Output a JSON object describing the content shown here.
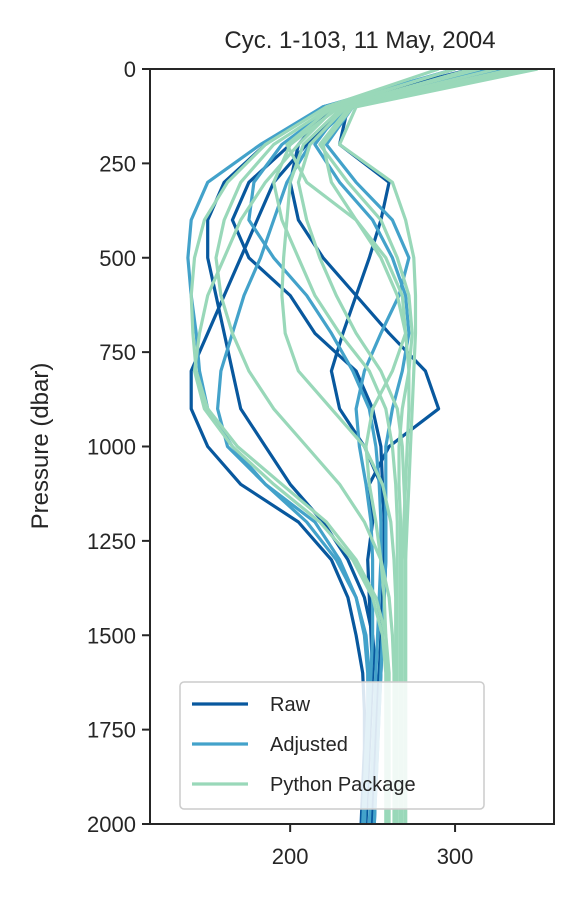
{
  "chart_data": {
    "type": "line",
    "title": "Cyc. 1-103, 11 May, 2004",
    "xlabel": "",
    "ylabel": "Pressure (dbar)",
    "xlim": [
      115,
      360
    ],
    "ylim": [
      0,
      2000
    ],
    "y_inverted": true,
    "x_ticks": [
      200,
      300
    ],
    "y_ticks": [
      0,
      250,
      500,
      750,
      1000,
      1250,
      1500,
      1750,
      2000
    ],
    "grid": false,
    "legend_position": "lower-left",
    "pressure_levels": [
      0,
      100,
      200,
      300,
      400,
      500,
      600,
      700,
      800,
      900,
      1000,
      1100,
      1200,
      1300,
      1400,
      1500,
      1600,
      1700,
      1800,
      1900,
      2000
    ],
    "series": [
      {
        "name": "Raw",
        "color": "#08589e",
        "profiles": [
          [
            300,
            225,
            205,
            200,
            205,
            220,
            240,
            260,
            282,
            290,
            260,
            248,
            250,
            247,
            248,
            249,
            250,
            249,
            248,
            247,
            246
          ],
          [
            335,
            232,
            210,
            190,
            180,
            170,
            160,
            150,
            140,
            140,
            150,
            170,
            205,
            225,
            235,
            240,
            244,
            245,
            245,
            244,
            243
          ],
          [
            340,
            235,
            230,
            260,
            255,
            248,
            240,
            232,
            225,
            230,
            245,
            255,
            258,
            258,
            257,
            256,
            255,
            254,
            253,
            252,
            251
          ],
          [
            320,
            228,
            200,
            175,
            165,
            175,
            200,
            215,
            240,
            250,
            255,
            256,
            257,
            257,
            256,
            255,
            254,
            253,
            252,
            251,
            250
          ],
          [
            310,
            220,
            185,
            160,
            150,
            150,
            155,
            160,
            165,
            170,
            185,
            200,
            220,
            235,
            245,
            250,
            252,
            252,
            251,
            250,
            249
          ]
        ]
      },
      {
        "name": "Adjusted",
        "color": "#43a2ca",
        "profiles": [
          [
            318,
            232,
            215,
            230,
            250,
            262,
            270,
            272,
            268,
            262,
            258,
            258,
            258,
            258,
            257,
            256,
            255,
            254,
            253,
            252,
            251
          ],
          [
            345,
            236,
            212,
            198,
            190,
            182,
            172,
            165,
            158,
            156,
            162,
            185,
            215,
            230,
            240,
            245,
            247,
            247,
            246,
            245,
            244
          ],
          [
            330,
            226,
            195,
            178,
            175,
            190,
            210,
            225,
            238,
            248,
            252,
            254,
            255,
            255,
            254,
            253,
            252,
            251,
            250,
            249,
            248
          ],
          [
            300,
            220,
            182,
            150,
            140,
            138,
            140,
            143,
            145,
            150,
            165,
            185,
            210,
            228,
            240,
            246,
            248,
            248,
            247,
            246,
            245
          ],
          [
            342,
            238,
            222,
            240,
            262,
            272,
            266,
            255,
            245,
            240,
            242,
            246,
            249,
            250,
            250,
            250,
            249,
            248,
            247,
            246,
            245
          ]
        ]
      },
      {
        "name": "Python Package",
        "color": "#99d8b9",
        "profiles": [
          [
            350,
            240,
            230,
            262,
            270,
            275,
            276,
            276,
            275,
            274,
            273,
            272,
            271,
            270,
            270,
            270,
            270,
            270,
            270,
            270,
            270
          ],
          [
            345,
            238,
            220,
            225,
            240,
            255,
            265,
            270,
            272,
            272,
            271,
            270,
            269,
            268,
            268,
            268,
            268,
            268,
            268,
            268,
            268
          ],
          [
            310,
            230,
            200,
            190,
            195,
            205,
            215,
            230,
            248,
            258,
            262,
            264,
            265,
            265,
            265,
            265,
            265,
            265,
            265,
            265,
            265
          ],
          [
            300,
            225,
            190,
            170,
            160,
            155,
            158,
            165,
            175,
            190,
            210,
            230,
            245,
            255,
            260,
            262,
            263,
            263,
            263,
            263,
            263
          ],
          [
            290,
            222,
            185,
            162,
            148,
            142,
            140,
            141,
            143,
            150,
            168,
            195,
            222,
            240,
            252,
            258,
            260,
            260,
            260,
            260,
            260
          ],
          [
            335,
            234,
            212,
            205,
            210,
            218,
            228,
            240,
            255,
            265,
            268,
            269,
            270,
            270,
            270,
            270,
            270,
            270,
            270,
            270,
            270
          ],
          [
            325,
            232,
            208,
            200,
            198,
            196,
            195,
            197,
            205,
            225,
            245,
            256,
            261,
            263,
            264,
            264,
            264,
            264,
            264,
            264,
            264
          ],
          [
            315,
            228,
            205,
            185,
            170,
            160,
            150,
            145,
            142,
            148,
            165,
            190,
            218,
            238,
            250,
            256,
            258,
            258,
            258,
            258,
            258
          ],
          [
            300,
            226,
            198,
            210,
            240,
            258,
            268,
            270,
            262,
            250,
            246,
            248,
            252,
            255,
            257,
            258,
            259,
            259,
            259,
            259,
            259
          ],
          [
            340,
            236,
            218,
            235,
            255,
            265,
            272,
            274,
            272,
            268,
            266,
            266,
            267,
            267,
            267,
            267,
            267,
            267,
            267,
            267,
            267
          ]
        ]
      }
    ]
  }
}
